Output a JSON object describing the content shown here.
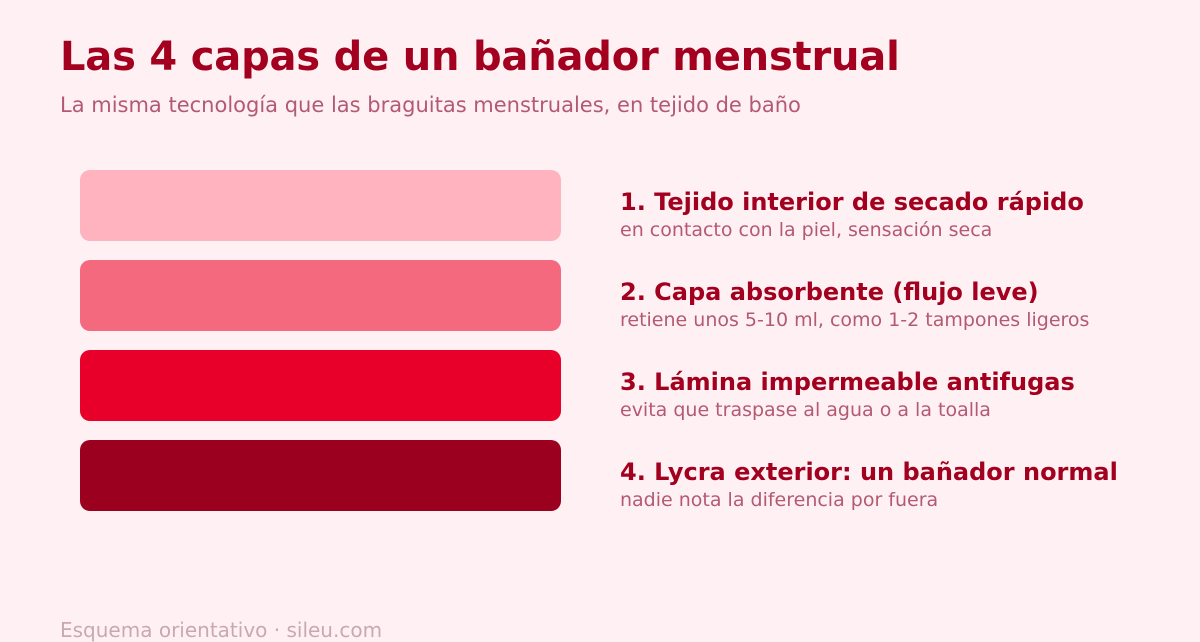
{
  "title": "Las 4 capas de un bañador menstrual",
  "subtitle": "La misma tecnología que las braguitas menstruales, en tejido de baño",
  "layers": [
    {
      "label": "1. Tejido interior de secado rápido",
      "description": "en contacto con la piel, sensación seca",
      "color": "#ffb3bf"
    },
    {
      "label": "2. Capa absorbente (flujo leve)",
      "description": "retiene unos 5-10 ml, como 1-2 tampones ligeros",
      "color": "#f5697f"
    },
    {
      "label": "3. Lámina impermeable antifugas",
      "description": "evita que traspase al agua o a la toalla",
      "color": "#e8002a"
    },
    {
      "label": "4. Lycra exterior: un bañador normal",
      "description": "nadie nota la diferencia por fuera",
      "color": "#9c001f"
    }
  ],
  "footer": "Esquema orientativo · sileu.com",
  "colors": {
    "background": "#fff1f3",
    "title": "#a3001f",
    "subtitle": "#b35a72",
    "footer": "#c9a9b1"
  }
}
